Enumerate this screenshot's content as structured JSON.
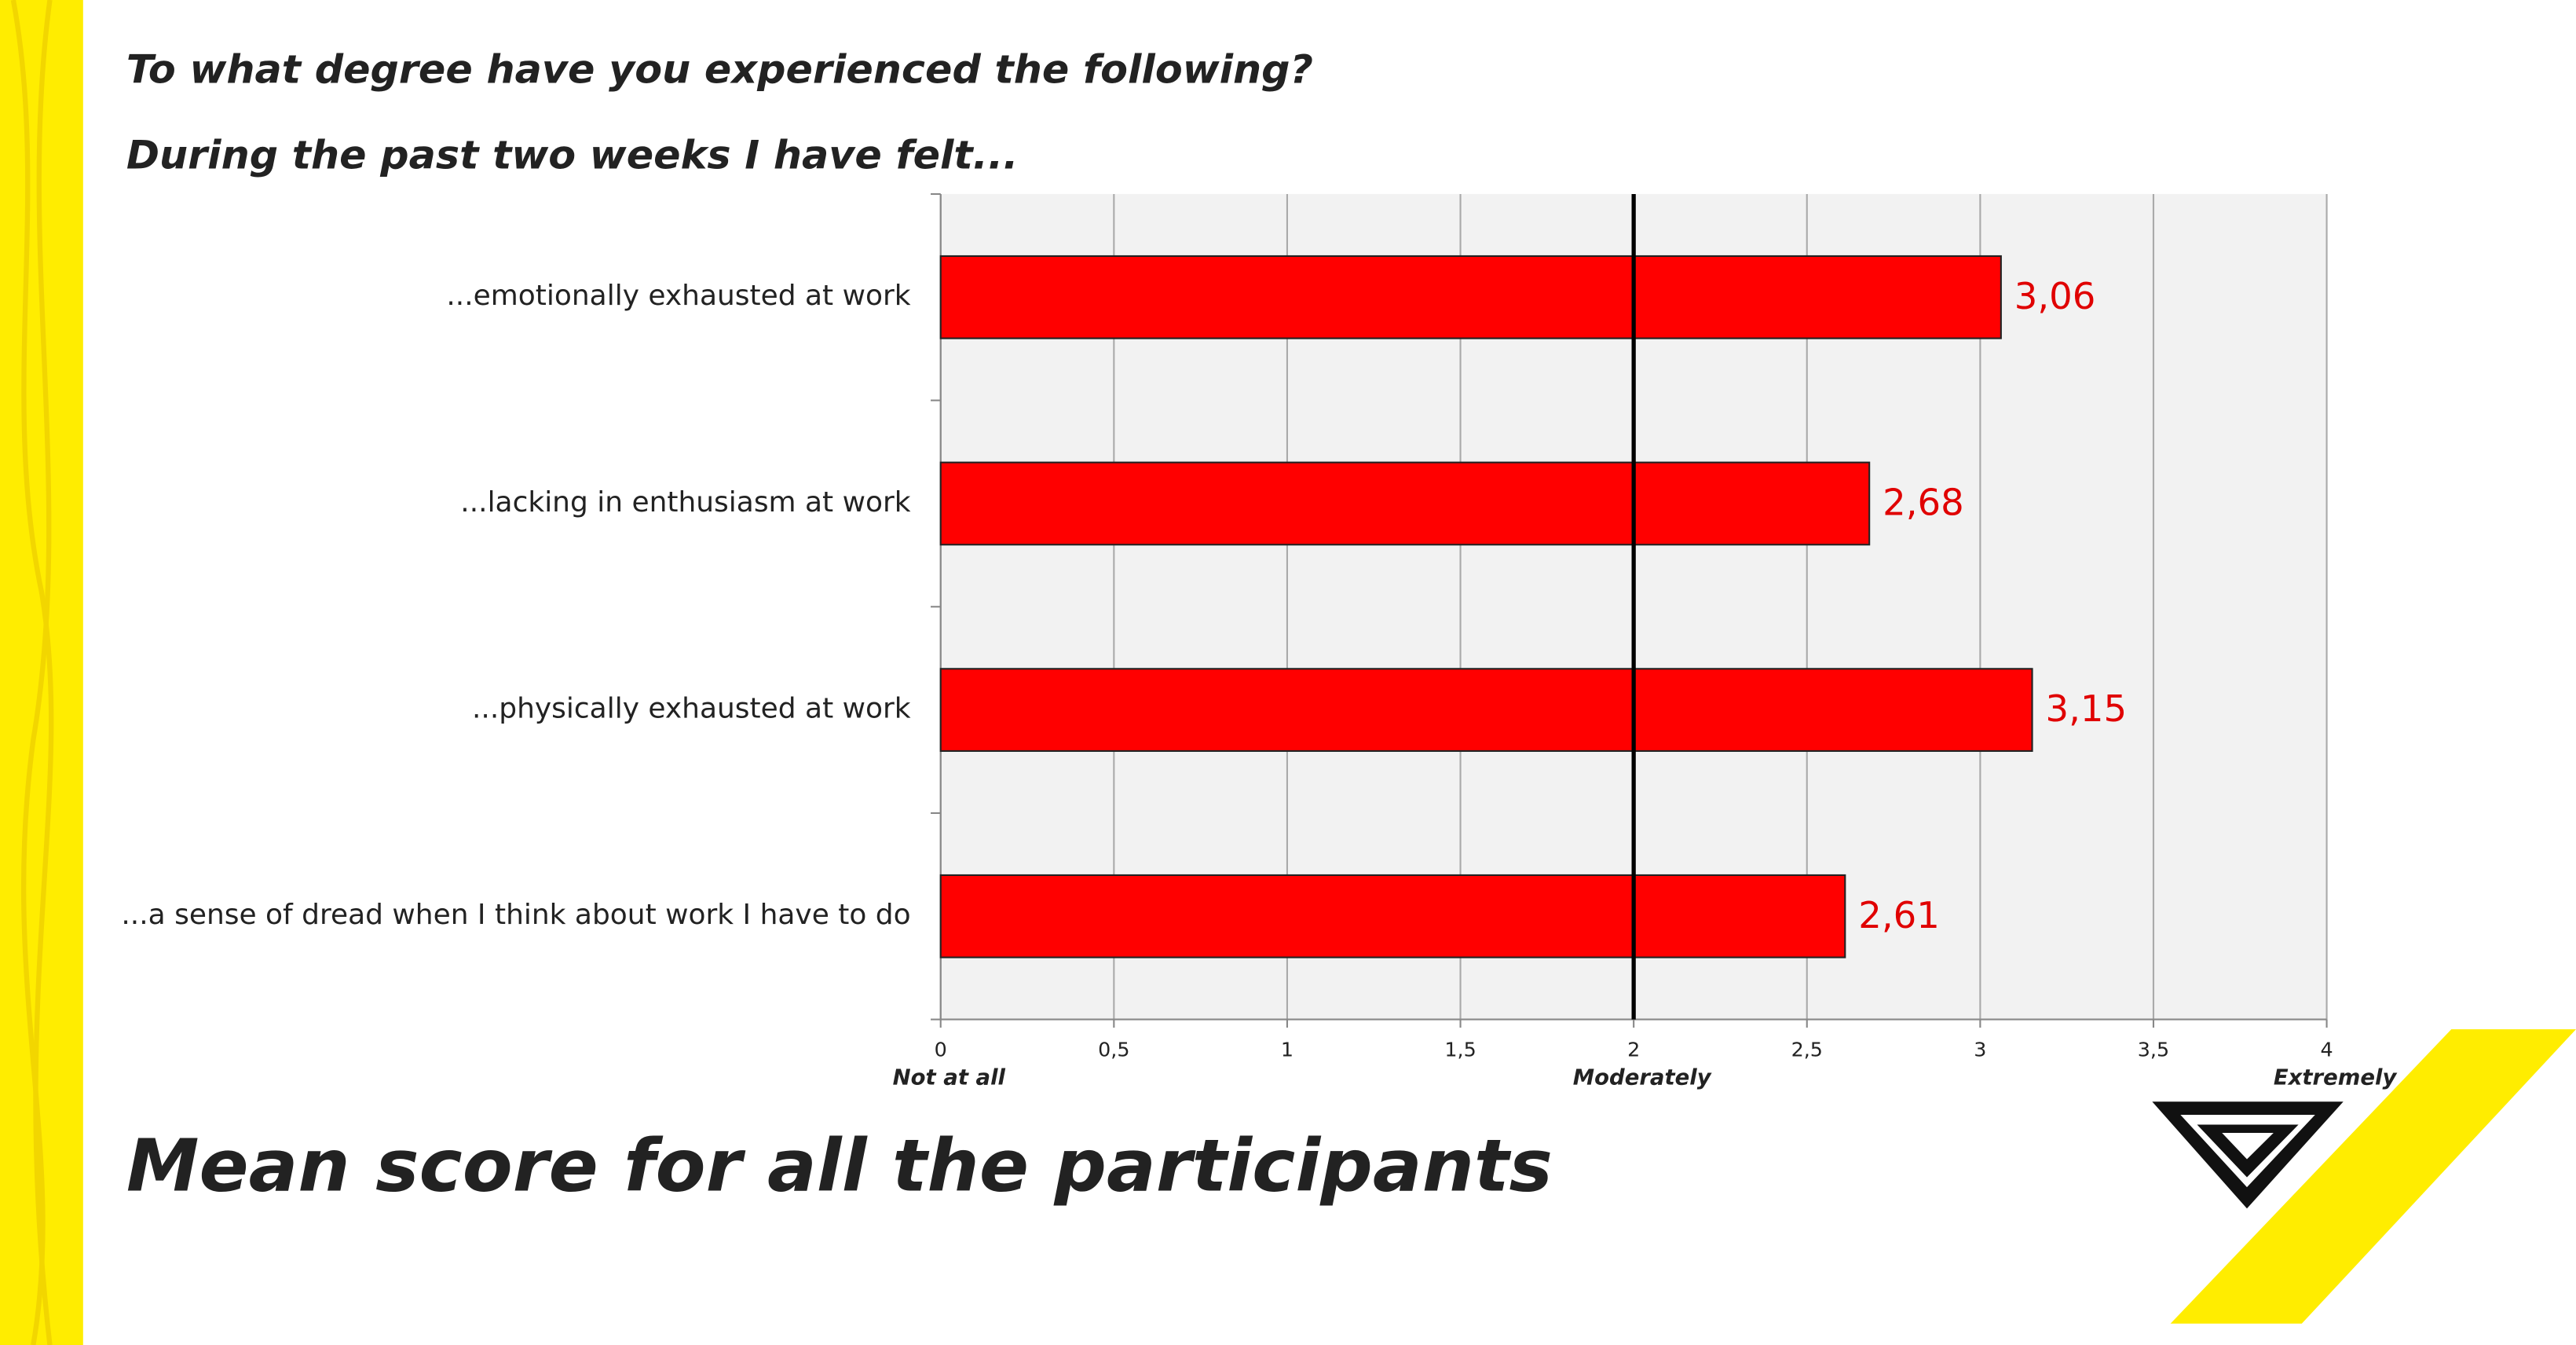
{
  "chart_data": {
    "type": "hbar",
    "subtitle": "To what degree have you experienced the following?",
    "prompt": "During the past two weeks I have felt...",
    "title": "Mean score for all the participants",
    "categories": [
      "...emotionally exhausted at work",
      "...lacking in enthusiasm at work",
      "...physically exhausted at work",
      "...a sense of dread when I think about work I have to do"
    ],
    "values": [
      3.06,
      2.68,
      3.15,
      2.61
    ],
    "value_labels": [
      "3,06",
      "2,68",
      "3,15",
      "2,61"
    ],
    "color": "#ff0000",
    "xlim": [
      0,
      4
    ],
    "xticks": [
      0,
      {
        "value": 0.5,
        "label": "0,5"
      },
      1,
      {
        "value": 1.5,
        "label": "1,5"
      },
      2,
      {
        "value": 2.5,
        "label": "2,5"
      },
      3,
      {
        "value": 3.5,
        "label": "3,5"
      },
      4
    ],
    "annotations": [
      {
        "value": 0,
        "label": "Not at all"
      },
      {
        "value": 2,
        "label": "Moderately"
      },
      {
        "value": 4,
        "label": "Extremely"
      }
    ],
    "reference_line": 2,
    "grid": true
  }
}
